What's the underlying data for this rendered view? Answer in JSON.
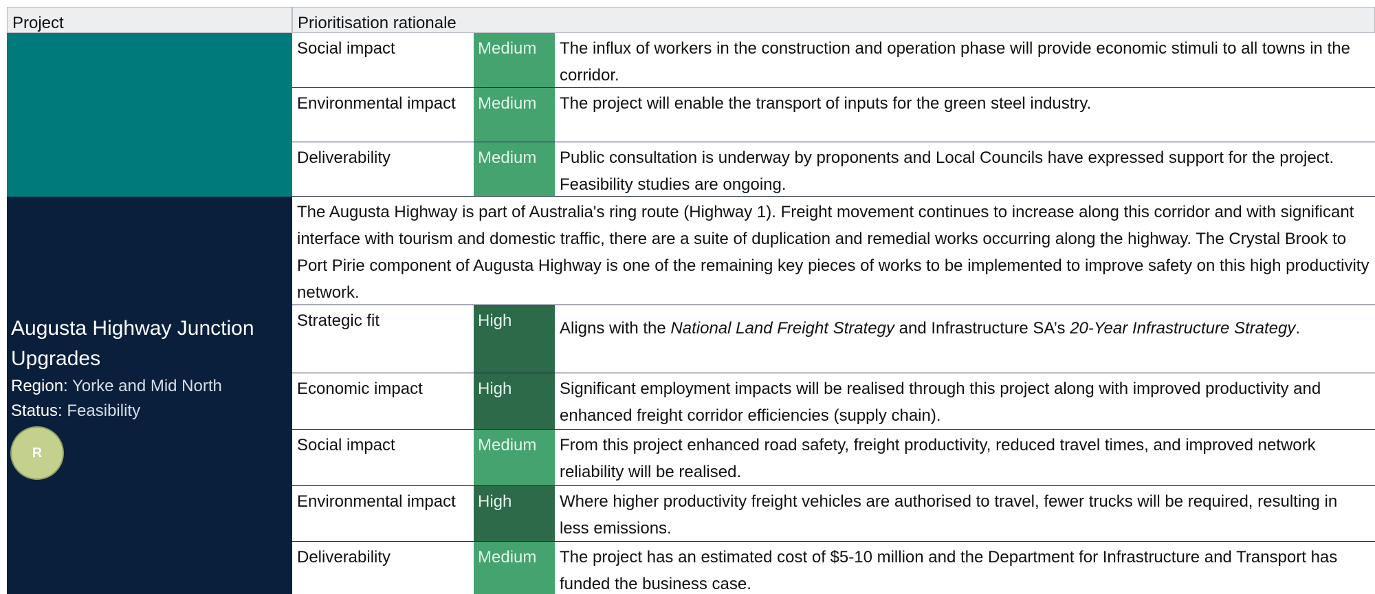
{
  "header": {
    "project": "Project",
    "rationale": "Prioritisation rationale"
  },
  "blocks": [
    {
      "rows": [
        {
          "criterion": "Social impact",
          "rating": "Medium",
          "text": "The influx of workers in the construction and operation phase will provide economic stimuli to all towns in the corridor."
        },
        {
          "criterion": "Environmental impact",
          "rating": "Medium",
          "text": "The project will enable the transport of inputs for the green steel industry."
        },
        {
          "criterion": "Deliverability",
          "rating": "Medium",
          "text": "Public consultation is underway by proponents and Local Councils have expressed support for the project. Feasibility studies are ongoing."
        }
      ]
    },
    {
      "name": "Augusta Highway Junction Upgrades",
      "region_label": "Region:",
      "region": "Yorke and Mid North",
      "status_label": "Status:",
      "status": "Feasibility",
      "badge": "R",
      "intro": "The Augusta Highway is part of Australia's ring route (Highway 1). Freight movement continues to increase along this corridor and with significant interface with tourism and domestic traffic, there are a suite of duplication and remedial works occurring along the highway. The Crystal Brook to Port Pirie component of Augusta Highway is one of the remaining key pieces of works to be implemented to improve safety on this high productivity network.",
      "rows": [
        {
          "criterion": "Strategic fit",
          "rating": "High",
          "text_parts": [
            {
              "text": "Aligns with the ",
              "italic": false
            },
            {
              "text": "National Land Freight Strategy",
              "italic": true
            },
            {
              "text": " and Infrastructure SA’s ",
              "italic": false
            },
            {
              "text": "20-Year Infrastructure Strategy",
              "italic": true
            },
            {
              "text": ".",
              "italic": false
            }
          ]
        },
        {
          "criterion": "Economic impact",
          "rating": "High",
          "text": "Significant employment impacts will be realised through this project along with improved productivity and enhanced freight corridor efficiencies (supply chain)."
        },
        {
          "criterion": "Social impact",
          "rating": "Medium",
          "text": "From this project enhanced road safety, freight productivity, reduced travel times, and improved network reliability will be realised."
        },
        {
          "criterion": "Environmental impact",
          "rating": "High",
          "text": "Where higher productivity freight vehicles are authorised to travel, fewer trucks will be required, resulting in less emissions."
        },
        {
          "criterion": "Deliverability",
          "rating": "Medium",
          "text": "The project has an estimated cost of $5-10 million and the Department for Infrastructure and Transport has funded the business case."
        }
      ]
    }
  ]
}
